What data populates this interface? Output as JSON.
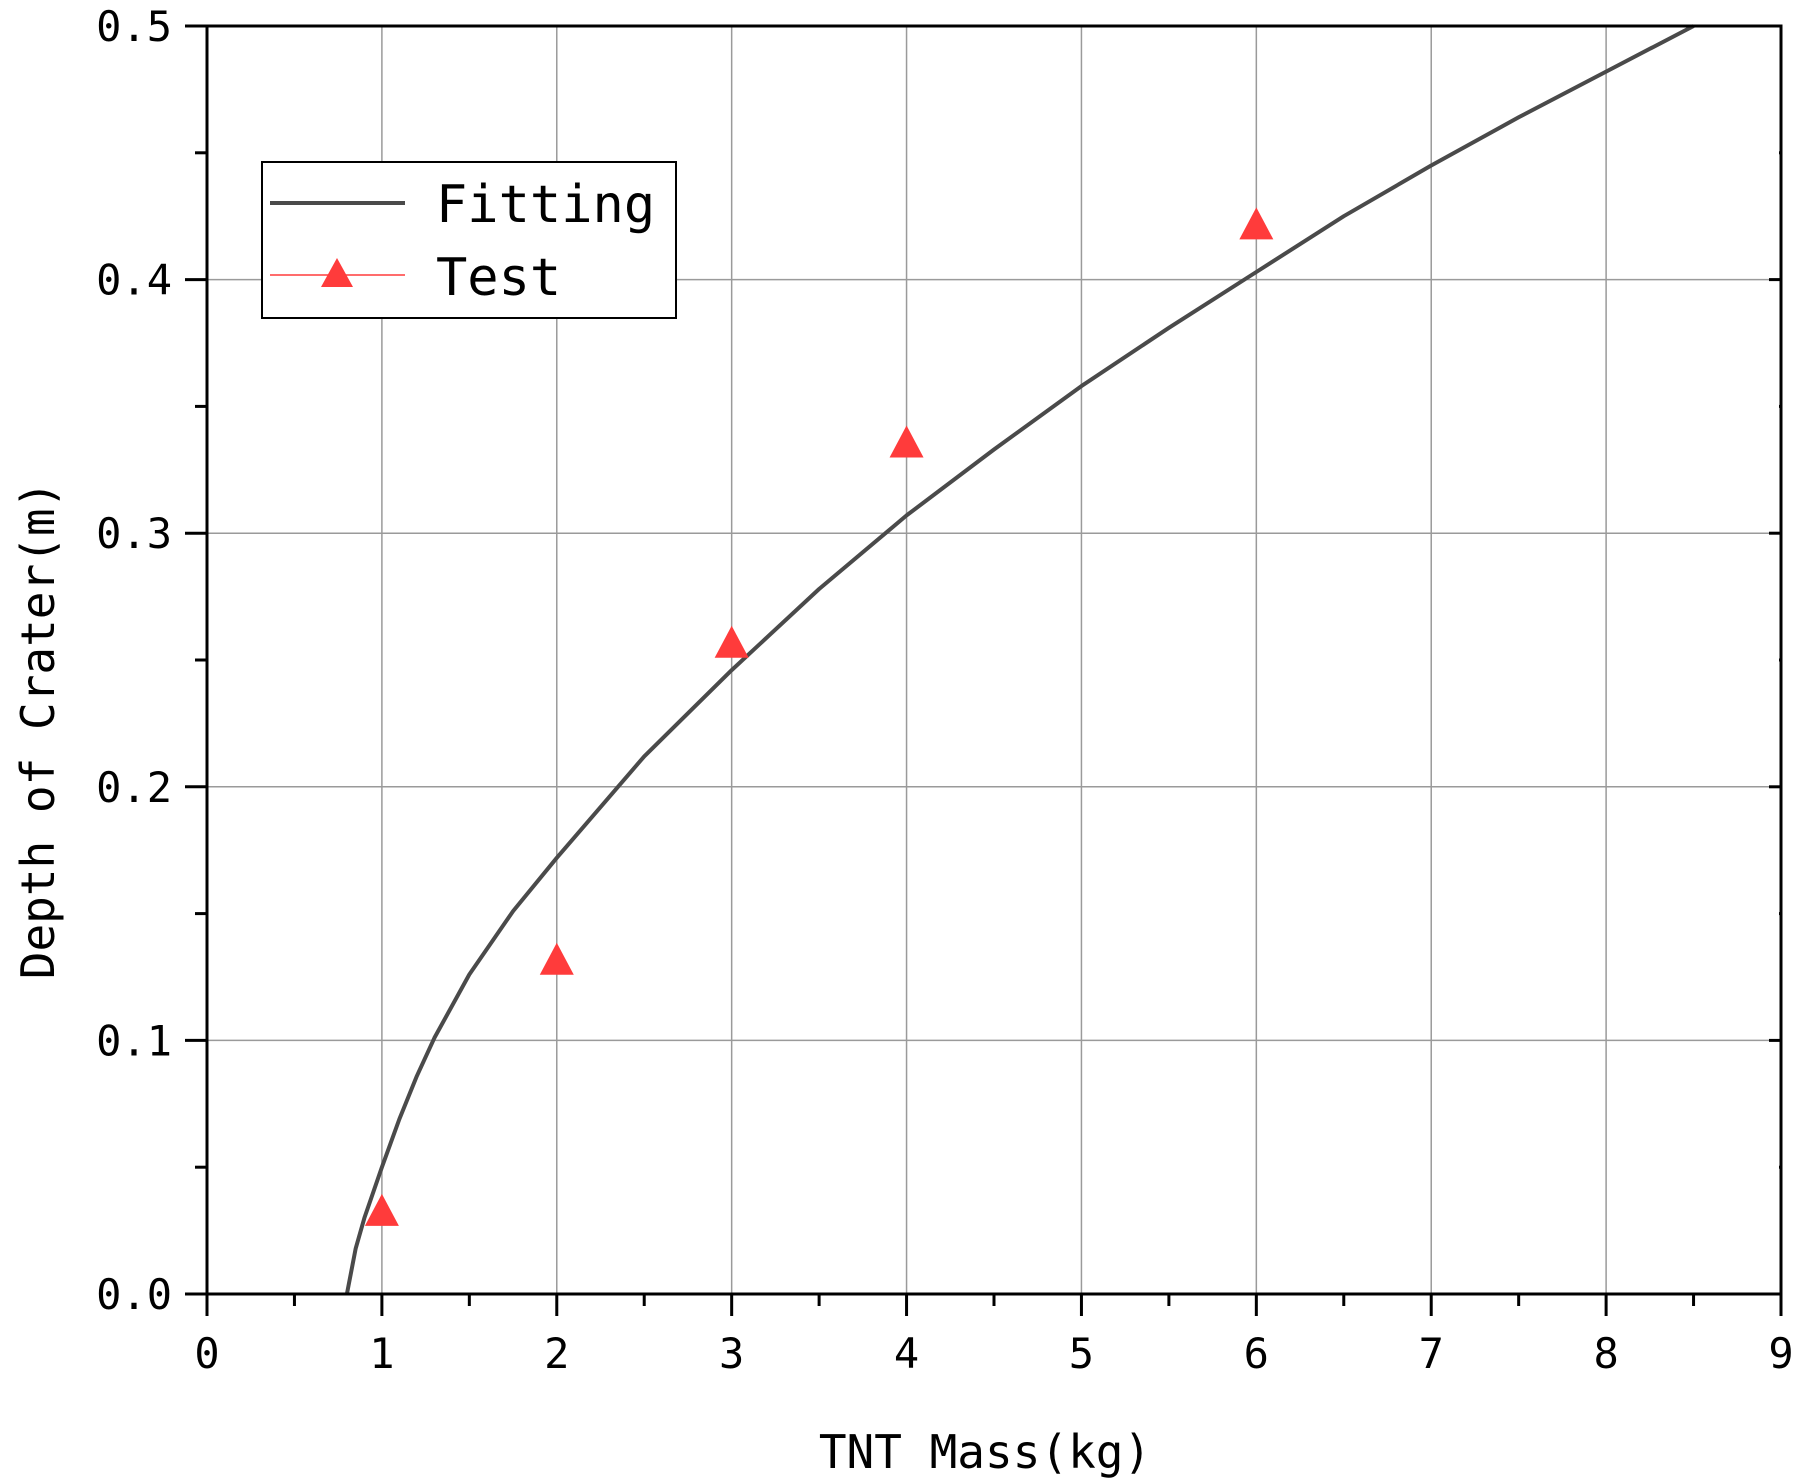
{
  "chart_data": {
    "type": "scatter",
    "title": "",
    "xlabel": "TNT Mass(kg)",
    "ylabel": "Depth of Crater(m)",
    "xlim": [
      0,
      9
    ],
    "ylim": [
      0,
      0.5
    ],
    "xticks": [
      "0",
      "1",
      "2",
      "3",
      "4",
      "5",
      "6",
      "7",
      "8",
      "9"
    ],
    "yticks": [
      "0.0",
      "0.1",
      "0.2",
      "0.3",
      "0.4",
      "0.5"
    ],
    "grid": true,
    "legend": {
      "placement": "top-left"
    },
    "series": [
      {
        "name": "Fitting",
        "kind": "line",
        "color": "#4a4a4a",
        "x": [
          0.8,
          0.85,
          0.9,
          1.0,
          1.1,
          1.2,
          1.3,
          1.5,
          1.75,
          2.0,
          2.5,
          3.0,
          3.5,
          4.0,
          4.5,
          5.0,
          5.5,
          6.0,
          6.5,
          7.0,
          7.5,
          8.0,
          8.5
        ],
        "y": [
          0.0,
          0.018,
          0.03,
          0.05,
          0.069,
          0.086,
          0.101,
          0.126,
          0.151,
          0.172,
          0.212,
          0.246,
          0.278,
          0.307,
          0.333,
          0.358,
          0.381,
          0.403,
          0.425,
          0.445,
          0.464,
          0.482,
          0.5
        ]
      },
      {
        "name": "Test",
        "kind": "scatter",
        "marker": "triangle",
        "color": "#ff3b3b",
        "x": [
          1,
          2,
          3,
          4,
          6
        ],
        "y": [
          0.032,
          0.131,
          0.256,
          0.335,
          0.421
        ]
      }
    ]
  }
}
